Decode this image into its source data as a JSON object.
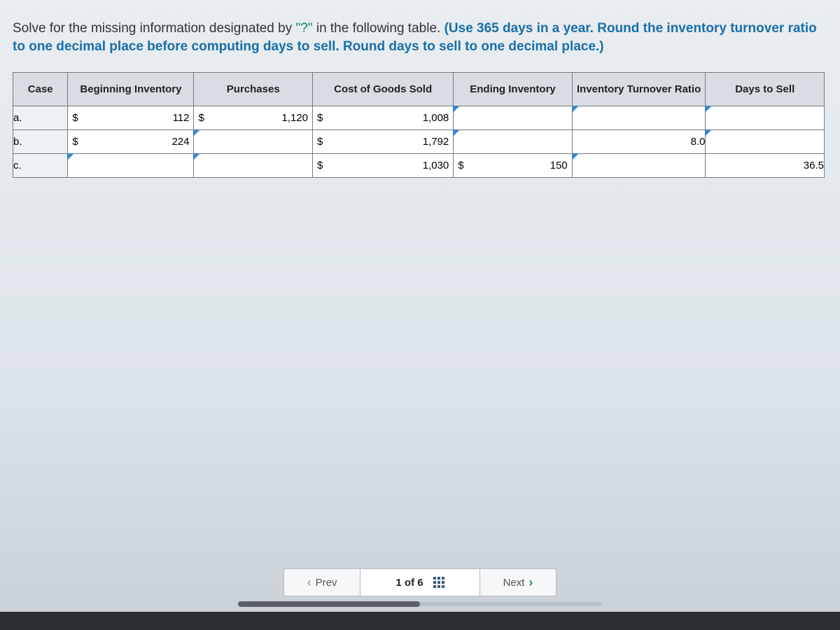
{
  "instructions": {
    "pre": "Solve for the missing information designated by ",
    "quoted": "\"?\"",
    "mid": " in the following table. ",
    "bold": "(Use 365 days in a year. Round the inventory turnover ratio to one decimal place before computing days to sell. Round days to sell to one decimal place.)"
  },
  "table": {
    "headers": {
      "case": "Case",
      "beginning": "Beginning Inventory",
      "purchases": "Purchases",
      "cogs": "Cost of Goods Sold",
      "ending": "Ending Inventory",
      "turnover": "Inventory Turnover Ratio",
      "days": "Days to Sell"
    },
    "currency": "$",
    "rows": [
      {
        "case": "a.",
        "beginning": "112",
        "purchases": "1,120",
        "cogs": "1,008",
        "ending": "",
        "turnover": "",
        "days": "",
        "beginning_cur": true,
        "purchases_cur": true,
        "cogs_cur": true,
        "ending_cur": false,
        "ending_marker": true,
        "turnover_marker": true,
        "days_marker": true
      },
      {
        "case": "b.",
        "beginning": "224",
        "purchases": "",
        "cogs": "1,792",
        "ending": "",
        "turnover": "8.0",
        "days": "",
        "beginning_cur": true,
        "purchases_cur": false,
        "cogs_cur": true,
        "ending_cur": false,
        "purchases_marker": true,
        "ending_marker": true,
        "turnover_marker": false,
        "days_marker": true
      },
      {
        "case": "c.",
        "beginning": "",
        "purchases": "",
        "cogs": "1,030",
        "ending": "150",
        "turnover": "",
        "days": "36.5",
        "beginning_cur": false,
        "purchases_cur": false,
        "cogs_cur": true,
        "ending_cur": true,
        "beginning_marker": true,
        "purchases_marker": true,
        "turnover_marker": true
      }
    ]
  },
  "nav": {
    "prev": "Prev",
    "position": "1 of 6",
    "next": "Next"
  },
  "colors": {
    "header_bg": "#d7dde2",
    "marker": "#3a87c9",
    "bold_text": "#1a6ea8",
    "next_chevron": "#2d8f63"
  }
}
